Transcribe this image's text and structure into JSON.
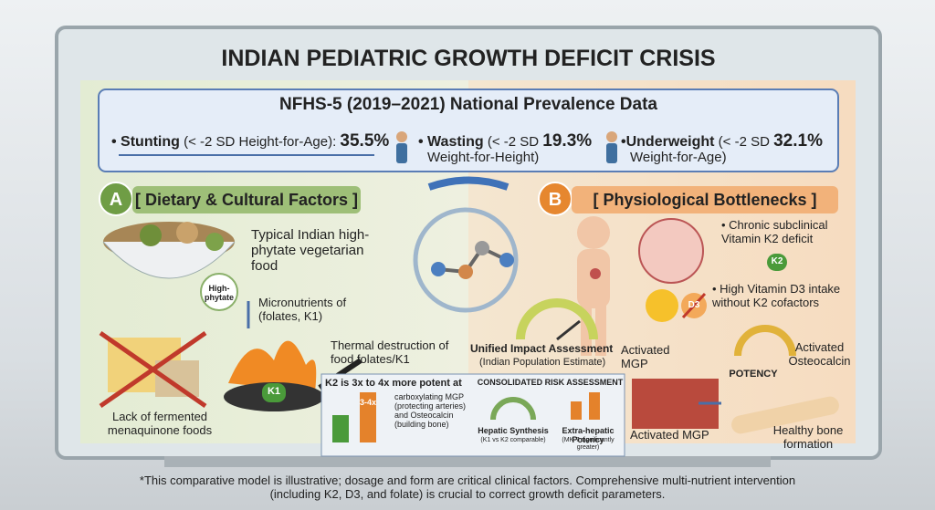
{
  "title": "INDIAN PEDIATRIC GROWTH DEFICIT CRISIS",
  "banner": {
    "heading": "NFHS-5 (2019–2021) National Prevalence Data",
    "stats": [
      {
        "label": "• Stunting",
        "qualifier": "(< -2 SD Height-for-Age):",
        "value": "35.5%"
      },
      {
        "label": "• Wasting",
        "qualifier": "(< -2 SD",
        "value": "19.3%",
        "measure": "Weight-for-Height)"
      },
      {
        "label": "•Underweight",
        "qualifier": "(< -2 SD",
        "value": "32.1%",
        "measure": "Weight-for-Age)"
      }
    ]
  },
  "panel_a": {
    "letter": "A",
    "title": "[ Dietary & Cultural Factors ]",
    "food": "Typical Indian high-phytate vegetarian food",
    "phytate": "High-phytate",
    "micronutrients": "Micronutrients of (folates, K1)",
    "thermal": "Thermal destruction of food folates/K1",
    "fermented": "Lack of fermented menaquinone foods",
    "k1": "K1"
  },
  "panel_b": {
    "letter": "B",
    "title": "[ Physiological Bottlenecks ]",
    "deficit": "• Chronic subclinical Vitamin K2 deficit",
    "d3": "• High Vitamin D3 intake without K2 cofactors",
    "k2": "K2",
    "d3_badge": "D3",
    "mgp_top": "Activated MGP",
    "mgp_bottom": "Activated MGP",
    "osteocalcin": "Activated Osteocalcin",
    "potency": "POTENCY",
    "bone": "Healthy bone formation"
  },
  "center": {
    "title": "Unified Impact Assessment",
    "subtitle": "(Indian Population Estimate)"
  },
  "k2_box": {
    "headline": "K2 is 3x to 4x more potent at",
    "detail": "carboxylating MGP (protecting arteries) and Osteocalcin (building bone)",
    "ratio": "3-4x",
    "risk_title": "CONSOLIDATED RISK ASSESSMENT",
    "hepatic": "Hepatic Synthesis",
    "hepatic_note": "(K1 vs K2 comparable)",
    "extra": "Extra-hepatic Potency",
    "extra_note": "(MK-7 significantly greater)"
  },
  "footnote": "*This comparative model is illustrative; dosage and form are critical clinical factors. Comprehensive multi-nutrient intervention (including K2, D3, and folate) is crucial to correct growth deficit parameters."
}
